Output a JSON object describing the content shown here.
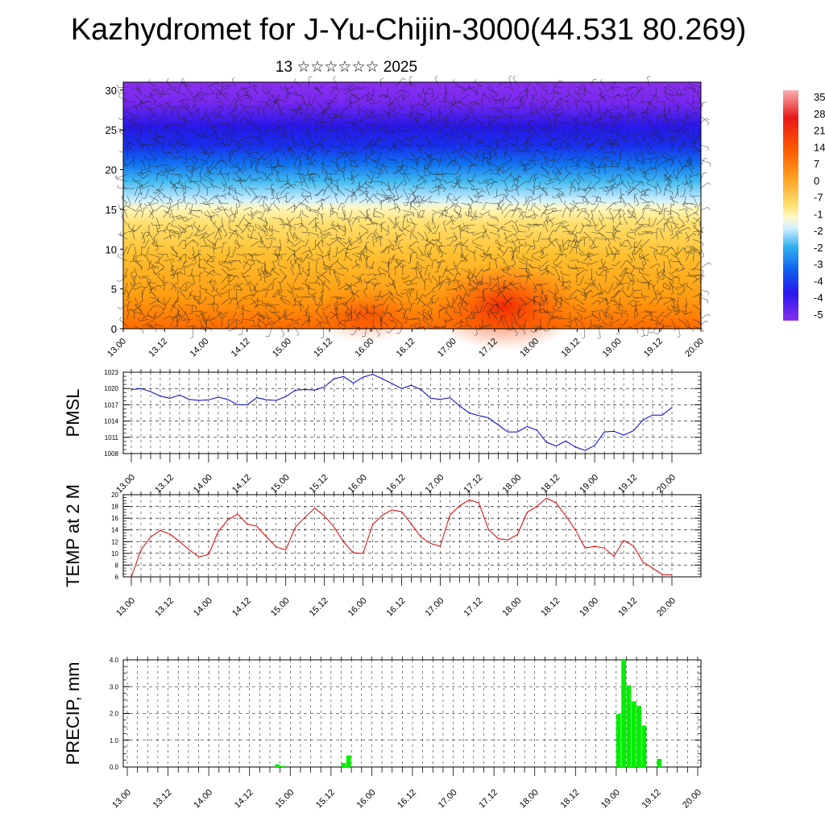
{
  "page": {
    "title": "Kazhydromet for J-Yu-Chijin-3000(44.531 80.269)",
    "subtitle": "13 ☆☆☆☆☆☆ 2025"
  },
  "chart_data": [
    {
      "type": "heatmap",
      "name": "wind and temperature cross-section",
      "y_ticks": [
        "0",
        "5",
        "10",
        "15",
        "20",
        "25",
        "30"
      ],
      "ylim": [
        0,
        31
      ],
      "x_ticks": [
        "13.00",
        "13.12",
        "14.00",
        "14.12",
        "15.00",
        "15.12",
        "16.00",
        "16.12",
        "17.00",
        "17.12",
        "18.00",
        "18.12",
        "19.00",
        "19.12",
        "20.00"
      ],
      "colorbar_labels": [
        "35",
        "28",
        "21",
        "14",
        "7",
        "0",
        "-7",
        "-1",
        "-2",
        "-2",
        "-3",
        "-4",
        "-4",
        "-5"
      ],
      "color_stops": [
        "#f8a0a0",
        "#e81010",
        "#ff5a00",
        "#ff9a10",
        "#ffd030",
        "#fff080",
        "#d8f0ff",
        "#30b0f0",
        "#1870f0",
        "#2020f0",
        "#8020f0"
      ]
    },
    {
      "type": "line",
      "ylabel": "PMSL",
      "y_ticks": [
        "1008",
        "1011",
        "1014",
        "1017",
        "1020",
        "1023"
      ],
      "ylim": [
        1008,
        1023
      ],
      "x_ticks": [
        "13.00",
        "13.12",
        "14.00",
        "14.12",
        "15.00",
        "15.12",
        "16.00",
        "16.12",
        "17.00",
        "17.12",
        "18.00",
        "18.12",
        "19.00",
        "19.12",
        "20.00"
      ],
      "color": "#0000cc",
      "values": [
        1019.8,
        1020.0,
        1019.4,
        1018.6,
        1018.2,
        1018.8,
        1018.0,
        1017.8,
        1017.9,
        1018.4,
        1018.0,
        1017.0,
        1017.0,
        1018.3,
        1017.9,
        1017.8,
        1018.5,
        1019.7,
        1019.8,
        1019.7,
        1020.3,
        1021.8,
        1022.2,
        1021.0,
        1022.1,
        1022.6,
        1021.8,
        1020.9,
        1020.0,
        1020.6,
        1019.8,
        1018.2,
        1018.0,
        1018.3,
        1016.8,
        1015.5,
        1015.0,
        1014.6,
        1013.3,
        1012.0,
        1012.0,
        1013.0,
        1012.3,
        1010.1,
        1009.4,
        1010.3,
        1009.2,
        1008.6,
        1009.5,
        1012.0,
        1012.1,
        1011.4,
        1012.2,
        1014.2,
        1015.1,
        1015.1,
        1016.5
      ]
    },
    {
      "type": "line",
      "ylabel": "TEMP at 2 M",
      "y_ticks": [
        "6",
        "8",
        "10",
        "12",
        "14",
        "16",
        "18",
        "20"
      ],
      "ylim": [
        6,
        20
      ],
      "x_ticks": [
        "13.00",
        "13.12",
        "14.00",
        "14.12",
        "15.00",
        "15.12",
        "16.00",
        "16.12",
        "17.00",
        "17.12",
        "18.00",
        "18.12",
        "19.00",
        "19.12",
        "20.00"
      ],
      "color": "#dd0000",
      "values": [
        6.0,
        10.6,
        12.8,
        13.9,
        13.3,
        12.0,
        10.6,
        9.4,
        9.8,
        13.7,
        15.7,
        16.7,
        15.0,
        14.6,
        12.8,
        11.1,
        10.6,
        14.5,
        16.2,
        17.7,
        16.4,
        14.5,
        11.9,
        10.1,
        10.0,
        14.9,
        16.5,
        17.4,
        17.1,
        15.0,
        12.8,
        11.7,
        11.2,
        16.5,
        18.1,
        19.1,
        18.6,
        14.1,
        12.5,
        12.3,
        13.2,
        17.0,
        18.0,
        19.4,
        18.6,
        16.4,
        14.0,
        10.9,
        11.2,
        10.9,
        9.5,
        12.2,
        11.3,
        8.5,
        7.5,
        6.4,
        6.3
      ]
    },
    {
      "type": "bar",
      "ylabel": "PRECIP, mm",
      "y_ticks": [
        "0.0",
        "1.0",
        "2.0",
        "3.0",
        "4.0"
      ],
      "ylim": [
        0,
        4
      ],
      "x_ticks": [
        "13.00",
        "13.12",
        "14.00",
        "14.12",
        "15.00",
        "15.12",
        "16.00",
        "16.12",
        "17.00",
        "17.12",
        "18.00",
        "18.12",
        "19.00",
        "19.12",
        "20.00"
      ],
      "color": "#00ee00",
      "bars": [
        {
          "t": 3.625,
          "v": 0.1
        },
        {
          "t": 3.75,
          "v": 0.04
        },
        {
          "t": 5.25,
          "v": 0.15
        },
        {
          "t": 5.375,
          "v": 0.43
        },
        {
          "t": 12.0,
          "v": 1.98
        },
        {
          "t": 12.125,
          "v": 4.0
        },
        {
          "t": 12.25,
          "v": 3.05
        },
        {
          "t": 12.375,
          "v": 2.45
        },
        {
          "t": 12.5,
          "v": 2.28
        },
        {
          "t": 12.625,
          "v": 1.55
        },
        {
          "t": 13.0,
          "v": 0.3
        }
      ]
    }
  ]
}
